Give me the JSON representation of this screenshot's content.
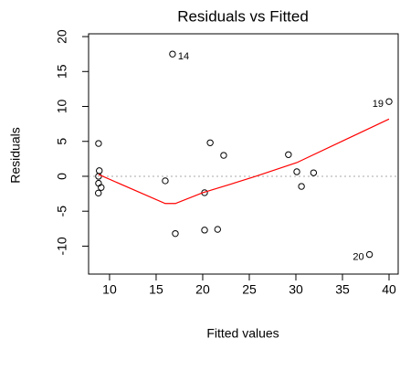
{
  "chart_data": {
    "type": "scatter",
    "title": "Residuals vs Fitted",
    "x_label": "Fitted values",
    "y_label": "Residuals",
    "xlim": [
      7.75,
      40.98
    ],
    "ylim": [
      -14.0,
      20.4
    ],
    "xticks": [
      10,
      15,
      20,
      25,
      30,
      35,
      40
    ],
    "yticks": [
      -10,
      -5,
      0,
      5,
      10,
      15,
      20
    ],
    "hline": 0,
    "hline_color": "#aaaaaa",
    "series": [
      {
        "type": "scatter",
        "color": "#000000",
        "x": [
          8.82,
          8.9,
          8.82,
          8.82,
          9.1,
          8.8,
          16.76,
          15.98,
          17.06,
          20.2,
          20.8,
          22.25,
          20.2,
          21.6,
          29.2,
          30.1,
          30.6,
          31.9,
          40.0,
          37.9
        ],
        "values": [
          4.7,
          0.8,
          0.0,
          -1.0,
          -1.6,
          -2.4,
          17.5,
          -0.65,
          -8.2,
          -2.35,
          4.8,
          3.0,
          -7.7,
          -7.6,
          3.1,
          0.65,
          -1.45,
          0.5,
          10.7,
          -11.2
        ],
        "point_labels": [
          null,
          null,
          null,
          null,
          null,
          null,
          "14",
          null,
          null,
          null,
          null,
          null,
          null,
          null,
          null,
          null,
          null,
          null,
          "19",
          "20"
        ]
      },
      {
        "type": "line",
        "color": "#ff0000",
        "x": [
          8.82,
          15.98,
          17.06,
          20.0,
          22.25,
          25.7,
          30.1,
          40.0
        ],
        "values": [
          0.26,
          -3.9,
          -3.9,
          -2.35,
          -1.44,
          0.0,
          1.96,
          8.2
        ]
      }
    ]
  }
}
